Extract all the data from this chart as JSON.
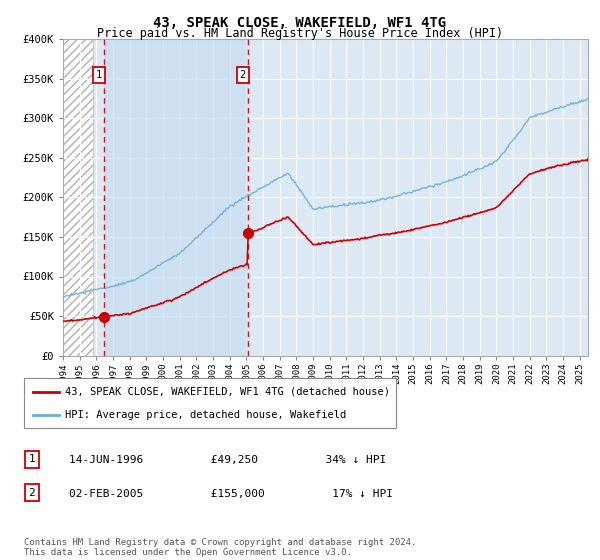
{
  "title": "43, SPEAK CLOSE, WAKEFIELD, WF1 4TG",
  "subtitle": "Price paid vs. HM Land Registry's House Price Index (HPI)",
  "legend_line1": "43, SPEAK CLOSE, WAKEFIELD, WF1 4TG (detached house)",
  "legend_line2": "HPI: Average price, detached house, Wakefield",
  "annotation1_label": "1",
  "annotation1_date": "14-JUN-1996",
  "annotation1_price": "£49,250",
  "annotation1_hpi": "34% ↓ HPI",
  "annotation2_label": "2",
  "annotation2_date": "02-FEB-2005",
  "annotation2_price": "£155,000",
  "annotation2_hpi": "17% ↓ HPI",
  "footer": "Contains HM Land Registry data © Crown copyright and database right 2024.\nThis data is licensed under the Open Government Licence v3.0.",
  "hpi_color": "#6baed6",
  "price_color": "#cc0000",
  "marker1_date_year": 1996.46,
  "marker2_date_year": 2005.09,
  "marker1_price": 49250,
  "marker2_price": 155000,
  "ylim": [
    0,
    400000
  ],
  "xlim_start": 1994.0,
  "xlim_end": 2025.5,
  "yticks": [
    0,
    50000,
    100000,
    150000,
    200000,
    250000,
    300000,
    350000,
    400000
  ],
  "ytick_labels": [
    "£0",
    "£50K",
    "£100K",
    "£150K",
    "£200K",
    "£250K",
    "£300K",
    "£350K",
    "£400K"
  ],
  "xtick_years": [
    1994,
    1995,
    1996,
    1997,
    1998,
    1999,
    2000,
    2001,
    2002,
    2003,
    2004,
    2005,
    2006,
    2007,
    2008,
    2009,
    2010,
    2011,
    2012,
    2013,
    2014,
    2015,
    2016,
    2017,
    2018,
    2019,
    2020,
    2021,
    2022,
    2023,
    2024,
    2025
  ],
  "hatch_end": 1995.8,
  "shade_start": 1996.46,
  "shade_end": 2005.09
}
